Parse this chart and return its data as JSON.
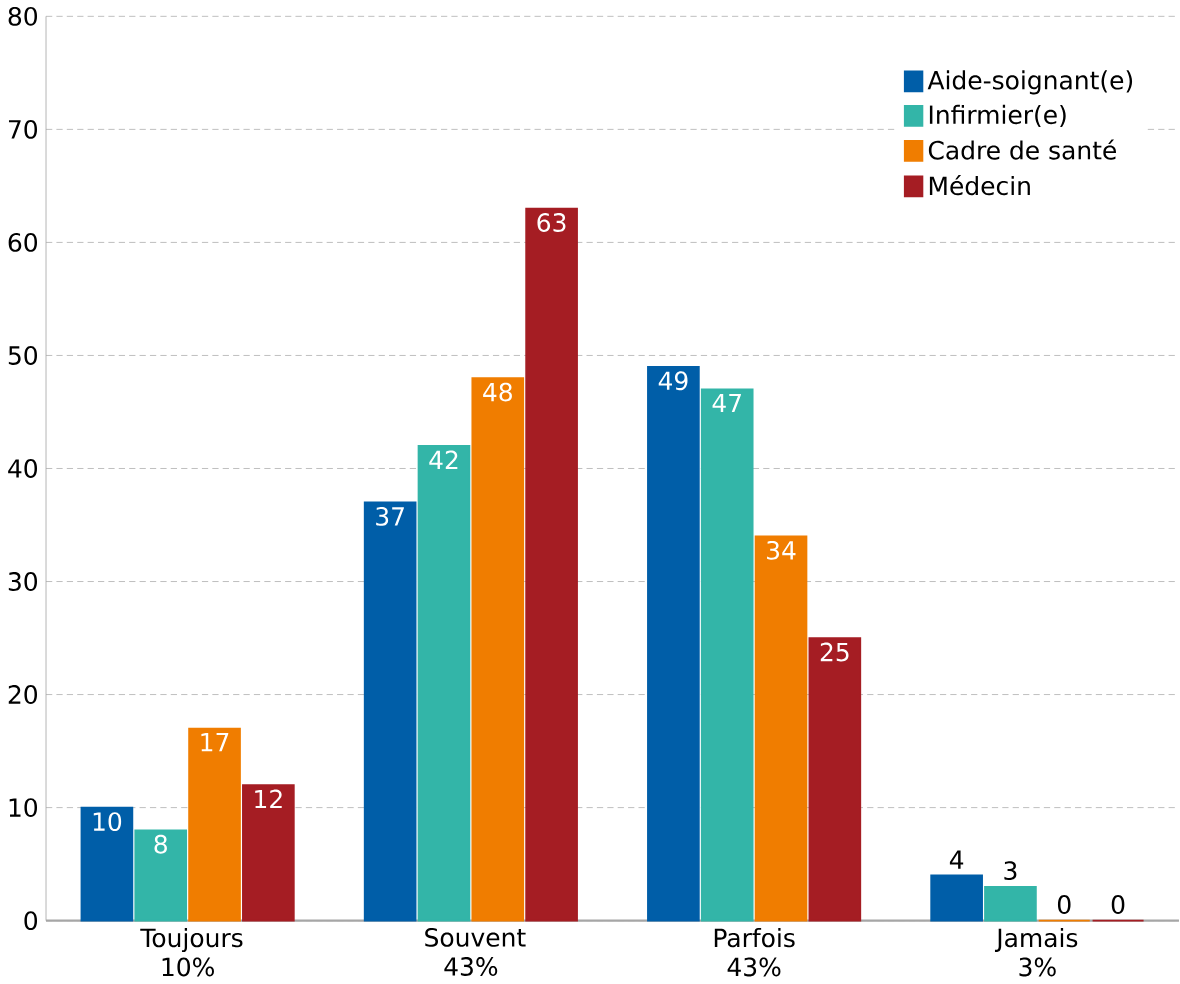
{
  "chart_data": {
    "type": "bar",
    "categories": [
      "Toujours 10%",
      "Souvent 43%",
      "Parfois 43%",
      "Jamais 3%"
    ],
    "series": [
      {
        "name": "Aide-soignant(e)",
        "color": "#005ea8",
        "values": [
          10,
          37,
          49,
          4
        ]
      },
      {
        "name": "Infirmier(e)",
        "color": "#33b5a8",
        "values": [
          8,
          42,
          47,
          3
        ]
      },
      {
        "name": "Cadre de santé",
        "color": "#f07d00",
        "values": [
          17,
          48,
          34,
          0
        ]
      },
      {
        "name": "Médecin",
        "color": "#a51d23",
        "values": [
          12,
          63,
          25,
          0
        ]
      }
    ],
    "ylim": [
      0,
      80
    ],
    "yticks": [
      0,
      10,
      20,
      30,
      40,
      50,
      60,
      70,
      80
    ],
    "grid": "y",
    "legend": "top right",
    "data_labels": true
  }
}
